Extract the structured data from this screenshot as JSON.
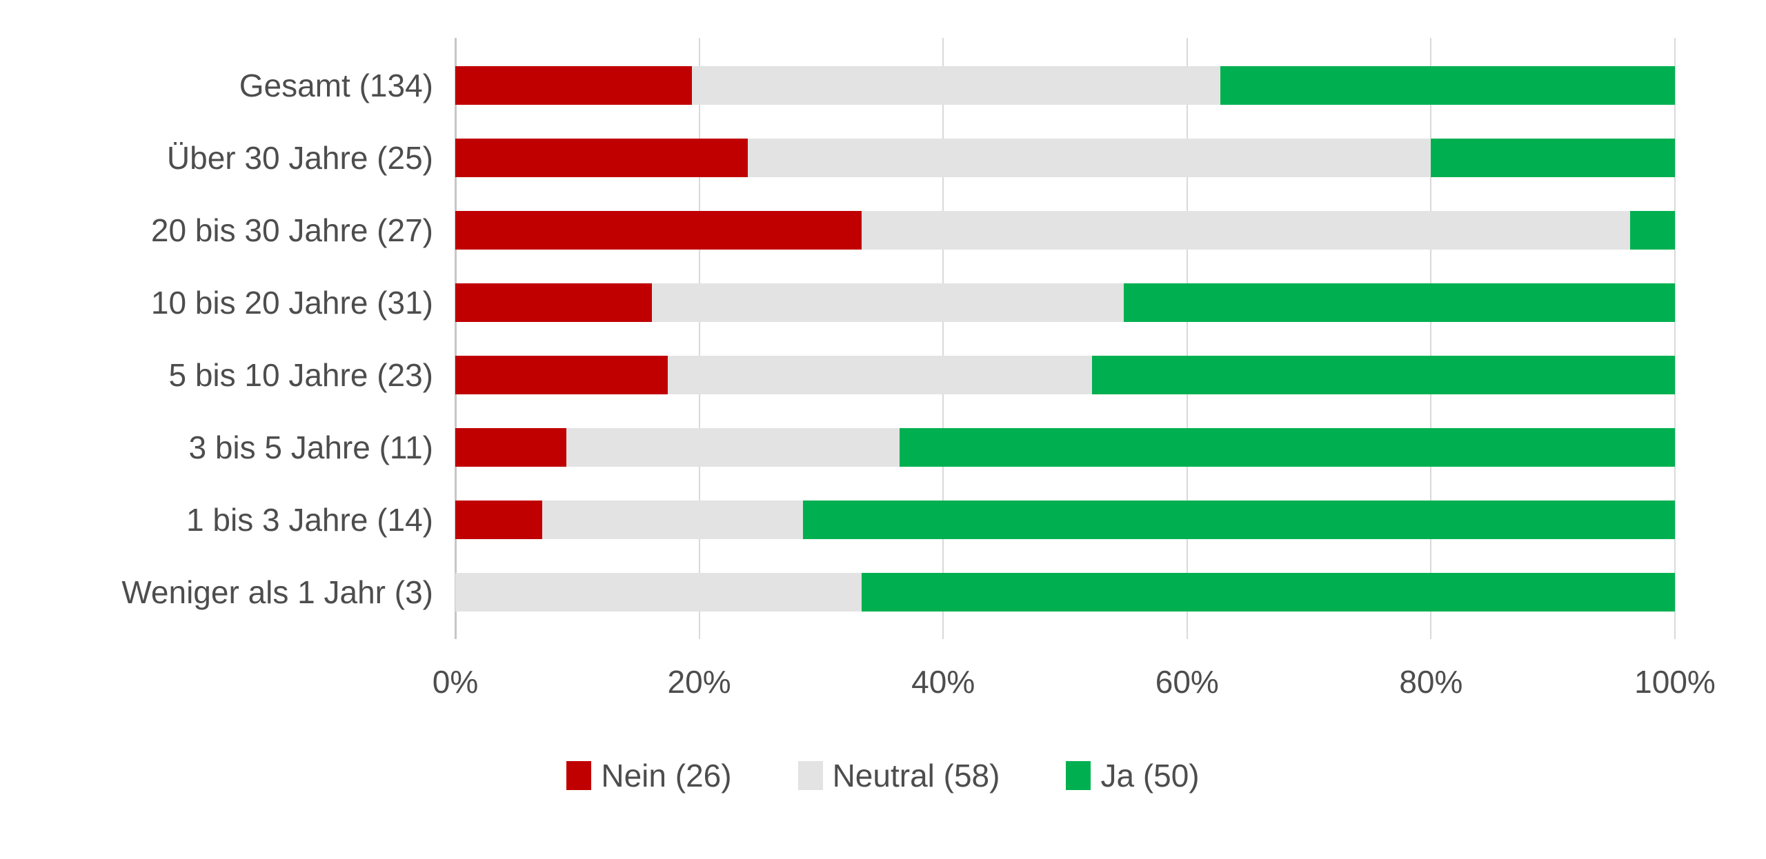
{
  "chart_data": {
    "type": "bar",
    "stacked": true,
    "orientation": "horizontal",
    "units": "percent",
    "title": "",
    "xlabel": "",
    "ylabel": "",
    "xlim": [
      0,
      100
    ],
    "x_ticks": [
      "0%",
      "20%",
      "40%",
      "60%",
      "80%",
      "100%"
    ],
    "grid": "vertical",
    "legend_position": "bottom",
    "categories": [
      "Gesamt (134)",
      "Über 30 Jahre (25)",
      "20 bis 30 Jahre (27)",
      "10 bis 20 Jahre (31)",
      "5 bis 10 Jahre (23)",
      "3 bis 5 Jahre (11)",
      "1 bis 3 Jahre (14)",
      "Weniger als 1 Jahr (3)"
    ],
    "series": [
      {
        "name": "Nein (26)",
        "color": "#c00000",
        "values": [
          19.4,
          24.0,
          33.3,
          16.1,
          17.4,
          9.1,
          7.1,
          0.0
        ]
      },
      {
        "name": "Neutral (58)",
        "color": "#e3e3e3",
        "values": [
          43.3,
          56.0,
          63.0,
          38.7,
          34.8,
          27.3,
          21.4,
          33.3
        ]
      },
      {
        "name": "Ja (50)",
        "color": "#00b050",
        "values": [
          37.3,
          20.0,
          3.7,
          45.2,
          47.8,
          63.6,
          71.4,
          66.7
        ]
      }
    ],
    "colors": {
      "grid": "#d9d9d9",
      "axis_line": "#c6c6c6",
      "text": "#4d4d4d"
    }
  }
}
